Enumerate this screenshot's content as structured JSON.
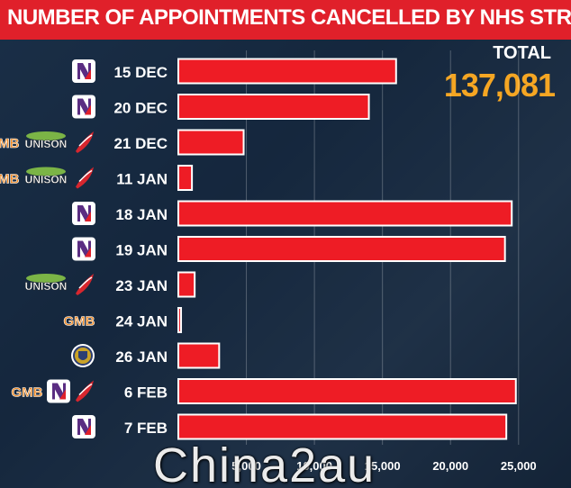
{
  "header": {
    "title": "NUMBER OF APPOINTMENTS CANCELLED BY NHS STRIKES"
  },
  "total": {
    "label": "TOTAL",
    "value": "137,081"
  },
  "watermark": "Chinа2au",
  "colors": {
    "banner": "#e0202a",
    "bar": "#ee1c25",
    "bar_border": "#ffffff",
    "total_value": "#f5a623",
    "gridline": "#ffffff"
  },
  "union_icons": {
    "rcn": "rcn-logo-icon",
    "gmb": "gmb-logo-icon",
    "unison": "unison-logo-icon",
    "unite": "unite-logo-icon",
    "gmb_label": "GMB",
    "unison_label": "UNISON"
  },
  "chart_data": {
    "type": "bar",
    "orientation": "horizontal",
    "title": "NUMBER OF APPOINTMENTS CANCELLED BY NHS STRIKES",
    "categories": [
      "15 DEC",
      "20 DEC",
      "21 DEC",
      "11 JAN",
      "18 JAN",
      "19 JAN",
      "23 JAN",
      "24 JAN",
      "26 JAN",
      "6 FEB",
      "7 FEB"
    ],
    "values": [
      16000,
      14000,
      4800,
      1000,
      24500,
      24000,
      1200,
      200,
      3000,
      24800,
      24100
    ],
    "unions": [
      [
        "rcn"
      ],
      [
        "rcn"
      ],
      [
        "gmb",
        "unison",
        "unite"
      ],
      [
        "gmb",
        "unison",
        "unite"
      ],
      [
        "rcn"
      ],
      [
        "rcn"
      ],
      [
        "unison",
        "unite"
      ],
      [
        "gmb"
      ],
      [
        "csp"
      ],
      [
        "gmb",
        "rcn",
        "unite"
      ],
      [
        "rcn"
      ]
    ],
    "xlim": [
      0,
      27000
    ],
    "xticks": [
      5000,
      10000,
      15000,
      20000,
      25000
    ],
    "xtick_labels": [
      "5,000",
      "10,000",
      "15,000",
      "20,000",
      "25,000"
    ],
    "grid": true
  }
}
